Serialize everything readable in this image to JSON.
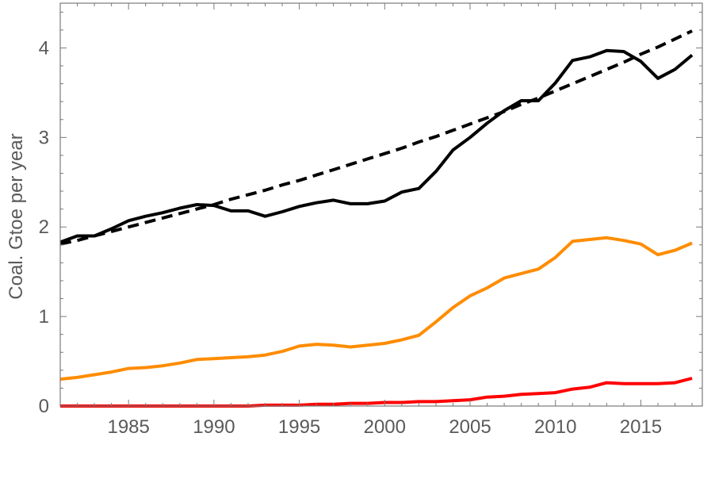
{
  "chart_data": {
    "type": "line",
    "ylabel": "Coal.  Gtoe per year",
    "xlabel": "",
    "xlim": [
      1981,
      2018.6
    ],
    "ylim": [
      0,
      4.5
    ],
    "xticks": [
      1985,
      1990,
      1995,
      2000,
      2005,
      2010,
      2015
    ],
    "yticks": [
      0,
      1,
      2,
      3,
      4
    ],
    "x_tick_labels": [
      "1985",
      "1990",
      "1995",
      "2000",
      "2005",
      "2010",
      "2015"
    ],
    "y_tick_labels": [
      "0",
      "1",
      "2",
      "3",
      "4"
    ],
    "grid": false,
    "x": [
      1981,
      1982,
      1983,
      1984,
      1985,
      1986,
      1987,
      1988,
      1989,
      1990,
      1991,
      1992,
      1993,
      1994,
      1995,
      1996,
      1997,
      1998,
      1999,
      2000,
      2001,
      2002,
      2003,
      2004,
      2005,
      2006,
      2007,
      2008,
      2009,
      2010,
      2011,
      2012,
      2013,
      2014,
      2015,
      2016,
      2017,
      2018
    ],
    "series": [
      {
        "color": "#000000",
        "style": "solid",
        "values": [
          1.83,
          1.9,
          1.9,
          1.98,
          2.07,
          2.12,
          2.16,
          2.21,
          2.25,
          2.24,
          2.18,
          2.18,
          2.12,
          2.17,
          2.23,
          2.27,
          2.3,
          2.26,
          2.26,
          2.29,
          2.39,
          2.43,
          2.62,
          2.86,
          3.0,
          3.16,
          3.3,
          3.41,
          3.41,
          3.61,
          3.86,
          3.9,
          3.97,
          3.96,
          3.85,
          3.66,
          3.76,
          3.92
        ]
      },
      {
        "color": "#000000",
        "style": "dashed",
        "values": [
          1.81,
          1.85,
          1.9,
          1.95,
          2.0,
          2.05,
          2.1,
          2.15,
          2.2,
          2.25,
          2.31,
          2.36,
          2.41,
          2.47,
          2.52,
          2.58,
          2.64,
          2.7,
          2.76,
          2.82,
          2.88,
          2.95,
          3.01,
          3.08,
          3.15,
          3.22,
          3.29,
          3.37,
          3.44,
          3.52,
          3.6,
          3.68,
          3.76,
          3.84,
          3.93,
          4.01,
          4.1,
          4.19
        ]
      },
      {
        "color": "#ff8c00",
        "style": "solid",
        "values": [
          0.3,
          0.32,
          0.35,
          0.38,
          0.42,
          0.43,
          0.45,
          0.48,
          0.52,
          0.53,
          0.54,
          0.55,
          0.57,
          0.61,
          0.67,
          0.69,
          0.68,
          0.66,
          0.68,
          0.7,
          0.74,
          0.79,
          0.94,
          1.1,
          1.23,
          1.32,
          1.43,
          1.48,
          1.53,
          1.66,
          1.84,
          1.86,
          1.88,
          1.85,
          1.81,
          1.69,
          1.74,
          1.82
        ]
      },
      {
        "color": "#ff0000",
        "style": "solid",
        "values": [
          0.0,
          0.0,
          0.0,
          0.0,
          0.0,
          0.0,
          0.0,
          0.0,
          0.0,
          0.0,
          0.0,
          0.0,
          0.01,
          0.01,
          0.01,
          0.02,
          0.02,
          0.03,
          0.03,
          0.04,
          0.04,
          0.05,
          0.05,
          0.06,
          0.07,
          0.1,
          0.11,
          0.13,
          0.14,
          0.15,
          0.19,
          0.21,
          0.26,
          0.25,
          0.25,
          0.25,
          0.26,
          0.31
        ]
      }
    ]
  }
}
